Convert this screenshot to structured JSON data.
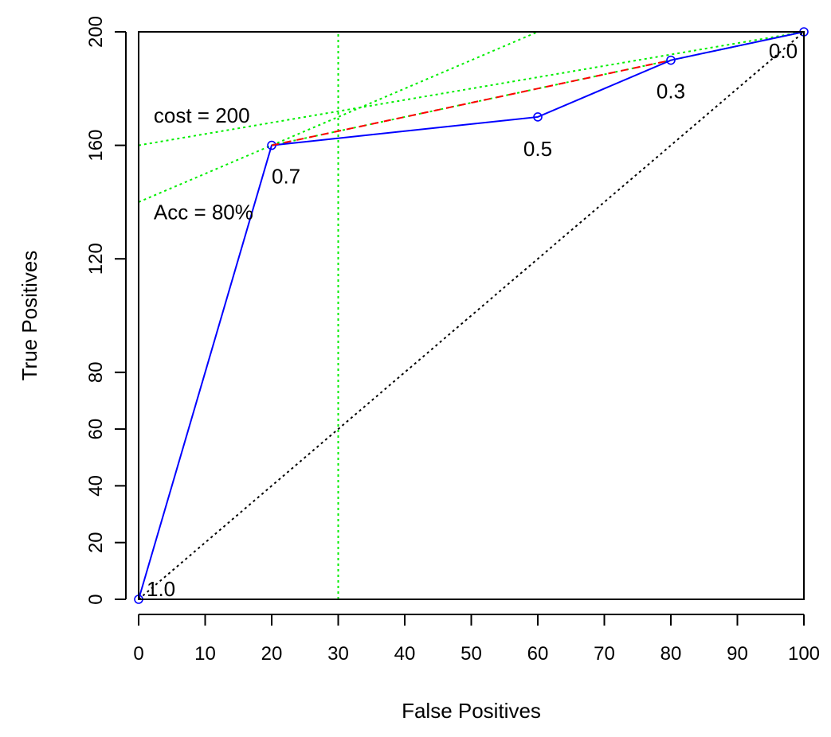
{
  "chart_data": {
    "type": "line",
    "title": "",
    "xlabel": "False Positives",
    "ylabel": "True Positives",
    "xlim": [
      0,
      100
    ],
    "ylim": [
      0,
      200
    ],
    "x_ticks": [
      0,
      10,
      20,
      30,
      40,
      50,
      60,
      70,
      80,
      90,
      100
    ],
    "y_ticks": [
      0,
      20,
      40,
      60,
      80,
      120,
      160,
      200
    ],
    "series": [
      {
        "style": "solid",
        "color": "#0000ff",
        "markers": "circle",
        "points": [
          {
            "x": 0,
            "y": 0,
            "label": "1.0"
          },
          {
            "x": 20,
            "y": 160,
            "label": "0.7"
          },
          {
            "x": 60,
            "y": 170,
            "label": "0.5"
          },
          {
            "x": 80,
            "y": 190,
            "label": "0.3"
          },
          {
            "x": 100,
            "y": 200,
            "label": "0.0"
          }
        ]
      },
      {
        "style": "dashed",
        "color": "#ff0000",
        "points": [
          {
            "x": 20,
            "y": 160
          },
          {
            "x": 80,
            "y": 190
          }
        ]
      },
      {
        "style": "dotted",
        "color": "#000000",
        "points": [
          {
            "x": 0,
            "y": 0
          },
          {
            "x": 100,
            "y": 200
          }
        ]
      }
    ],
    "reference_lines": [
      {
        "color": "#00ee00",
        "style": "dotted",
        "from": {
          "x": 0,
          "y": 160
        },
        "to": {
          "x": 100,
          "y": 200
        }
      },
      {
        "color": "#00ee00",
        "style": "dotted",
        "from": {
          "x": 0,
          "y": 140
        },
        "to": {
          "x": 60,
          "y": 200
        }
      },
      {
        "color": "#00ee00",
        "style": "dotted",
        "from": {
          "x": 20,
          "y": 160
        },
        "to": {
          "x": 100,
          "y": 200
        }
      },
      {
        "color": "#00ee00",
        "style": "dotted",
        "from": {
          "x": 30,
          "y": 0
        },
        "to": {
          "x": 30,
          "y": 200
        }
      }
    ],
    "annotations": [
      {
        "text": "cost = 200",
        "x": 2.5,
        "y": 168
      },
      {
        "text": "Acc = 80%",
        "x": 2.5,
        "y": 134
      }
    ],
    "grid": false
  }
}
